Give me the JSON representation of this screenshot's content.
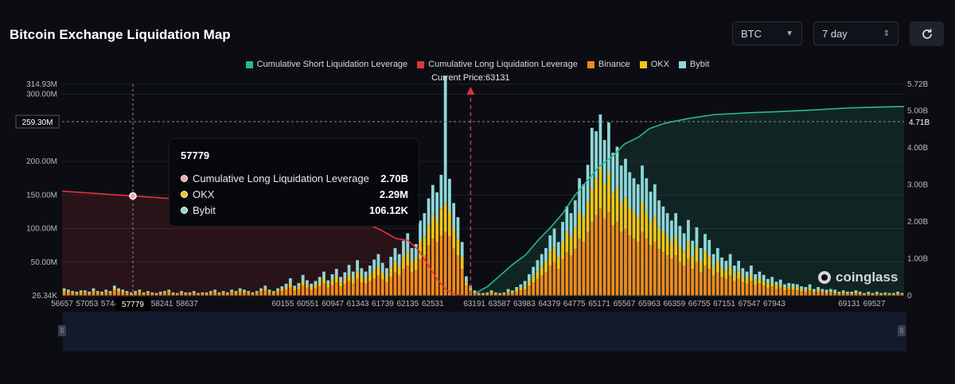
{
  "header": {
    "title": "Bitcoin Exchange Liquidation Map"
  },
  "controls": {
    "symbol": "BTC",
    "range": "7 day"
  },
  "brand": {
    "name": "coinglass"
  },
  "tooltip": {
    "title": "57779",
    "rows": [
      {
        "label": "Cumulative Long Liquidation Leverage",
        "value": "2.70B",
        "color": "#f4a3a8"
      },
      {
        "label": "OKX",
        "value": "2.29M",
        "color": "#f0c419"
      },
      {
        "label": "Bybit",
        "value": "106.12K",
        "color": "#8fd6d8"
      }
    ]
  },
  "chart_data": {
    "type": "bar",
    "current_price_label": "Current Price:63131",
    "current_price": 63131,
    "legend": [
      {
        "name": "Cumulative Short Liquidation Leverage",
        "color": "#2bb88a"
      },
      {
        "name": "Cumulative Long Liquidation Leverage",
        "color": "#e0343e"
      },
      {
        "name": "Binance",
        "color": "#f08a1c"
      },
      {
        "name": "OKX",
        "color": "#f0c419"
      },
      {
        "name": "Bybit",
        "color": "#8fd6d8"
      }
    ],
    "x_range": [
      56657,
      70000
    ],
    "x_ticks": [
      "56657",
      "57053",
      "57449",
      "57779",
      "58241",
      "58637",
      "60155",
      "60551",
      "60947",
      "61343",
      "61739",
      "62135",
      "62531",
      "63191",
      "63587",
      "63983",
      "64379",
      "64775",
      "65171",
      "65567",
      "65963",
      "66359",
      "66755",
      "67151",
      "67547",
      "67943",
      "69131",
      "69527"
    ],
    "x_tick_values": [
      56657,
      57053,
      57449,
      57779,
      58241,
      58637,
      60155,
      60551,
      60947,
      61343,
      61739,
      62135,
      62531,
      63191,
      63587,
      63983,
      64379,
      64775,
      65171,
      65567,
      65963,
      66359,
      66755,
      67151,
      67547,
      67943,
      69131,
      69527
    ],
    "hover_x": 57779,
    "hover_x_label": "57779",
    "y_left_ticks": [
      {
        "label": "314.93M",
        "value": 314.93
      },
      {
        "label": "300.00M",
        "value": 300
      },
      {
        "label": "200.00M",
        "value": 200
      },
      {
        "label": "150.00M",
        "value": 150
      },
      {
        "label": "100.00M",
        "value": 100
      },
      {
        "label": "50.00M",
        "value": 50
      },
      {
        "label": "26.34K",
        "value": 0
      }
    ],
    "y_left_crosshair": {
      "label": "259.30M",
      "value": 259.3
    },
    "y_left_range": [
      0,
      314.93
    ],
    "y_right_ticks": [
      {
        "label": "5.72B",
        "value": 5.72
      },
      {
        "label": "5.00B",
        "value": 5
      },
      {
        "label": "4.00B",
        "value": 4
      },
      {
        "label": "3.00B",
        "value": 3
      },
      {
        "label": "2.00B",
        "value": 2
      },
      {
        "label": "1.00B",
        "value": 1
      },
      {
        "label": "0",
        "value": 0
      }
    ],
    "y_right_crosshair": {
      "label": "4.71B",
      "value": 4.71
    },
    "y_right_range": [
      0,
      5.72
    ],
    "long_cumulative": {
      "x": [
        56657,
        57000,
        57500,
        57779,
        58200,
        58800,
        59400,
        60000,
        60600,
        61200,
        61500,
        61739,
        61950,
        62135,
        62300,
        62450,
        62600,
        62750,
        62900,
        63050
      ],
      "y": [
        2.83,
        2.79,
        2.73,
        2.7,
        2.65,
        2.58,
        2.5,
        2.42,
        2.3,
        2.1,
        1.95,
        1.75,
        1.55,
        1.5,
        1.25,
        0.85,
        0.45,
        0.15,
        0.03,
        0
      ]
    },
    "short_cumulative": {
      "x": [
        63191,
        63400,
        63600,
        63800,
        64000,
        64200,
        64400,
        64600,
        64775,
        64950,
        65171,
        65400,
        65567,
        65800,
        65963,
        66200,
        66359,
        66600,
        67000,
        67547,
        68000,
        68500,
        69131,
        69527,
        70000
      ],
      "y": [
        0.05,
        0.25,
        0.55,
        0.85,
        1.1,
        1.5,
        1.85,
        2.25,
        2.7,
        3.05,
        3.5,
        3.8,
        4.1,
        4.3,
        4.52,
        4.66,
        4.72,
        4.8,
        4.9,
        4.95,
        4.98,
        5.02,
        5.08,
        5.1,
        5.12
      ]
    },
    "bars_binance": [
      6,
      5,
      4,
      3,
      4,
      5,
      3,
      6,
      4,
      3,
      5,
      4,
      8,
      6,
      5,
      4,
      3,
      4,
      5,
      3,
      4,
      3,
      2,
      3,
      4,
      5,
      3,
      2,
      4,
      3,
      3,
      4,
      2,
      3,
      3,
      4,
      5,
      3,
      4,
      3,
      5,
      4,
      6,
      5,
      4,
      3,
      4,
      6,
      8,
      5,
      4,
      6,
      7,
      9,
      12,
      8,
      10,
      15,
      12,
      9,
      11,
      14,
      18,
      12,
      16,
      20,
      14,
      17,
      22,
      18,
      25,
      20,
      18,
      22,
      26,
      30,
      24,
      20,
      28,
      35,
      30,
      40,
      45,
      35,
      38,
      55,
      60,
      75,
      85,
      80,
      90,
      95,
      88,
      70,
      60,
      40,
      15,
      8,
      4,
      2,
      2,
      3,
      4,
      3,
      2,
      3,
      5,
      4,
      6,
      8,
      10,
      15,
      20,
      25,
      30,
      35,
      45,
      50,
      40,
      55,
      65,
      60,
      70,
      85,
      80,
      95,
      110,
      120,
      130,
      115,
      125,
      105,
      110,
      95,
      100,
      90,
      85,
      80,
      95,
      85,
      75,
      80,
      70,
      65,
      60,
      55,
      60,
      50,
      45,
      55,
      40,
      50,
      35,
      45,
      40,
      30,
      35,
      28,
      25,
      30,
      22,
      25,
      20,
      18,
      22,
      16,
      18,
      15,
      12,
      14,
      10,
      12,
      8,
      10,
      9,
      8,
      7,
      6,
      8,
      5,
      6,
      5,
      4,
      5,
      4,
      3,
      4,
      3,
      3,
      4,
      3,
      2,
      3,
      2,
      3,
      2,
      3,
      2,
      2,
      3,
      2
    ],
    "bars_okx": [
      2,
      2,
      1,
      1,
      2,
      1,
      1,
      2,
      1,
      1,
      2,
      1,
      3,
      2,
      2,
      1,
      1,
      1,
      2,
      1,
      1,
      1,
      1,
      1,
      1,
      2,
      1,
      1,
      1,
      1,
      1,
      1,
      1,
      1,
      1,
      1,
      2,
      1,
      1,
      1,
      2,
      1,
      2,
      2,
      1,
      1,
      1,
      2,
      3,
      2,
      1,
      2,
      3,
      4,
      6,
      3,
      4,
      7,
      5,
      4,
      5,
      6,
      8,
      5,
      7,
      9,
      6,
      8,
      10,
      8,
      12,
      9,
      8,
      10,
      12,
      14,
      11,
      9,
      13,
      16,
      14,
      18,
      20,
      16,
      17,
      25,
      28,
      30,
      35,
      32,
      40,
      42,
      38,
      30,
      25,
      18,
      6,
      3,
      2,
      1,
      1,
      1,
      2,
      1,
      1,
      1,
      2,
      2,
      3,
      4,
      5,
      7,
      10,
      12,
      14,
      16,
      20,
      22,
      18,
      25,
      30,
      28,
      32,
      40,
      38,
      45,
      50,
      55,
      60,
      52,
      58,
      48,
      50,
      44,
      46,
      42,
      40,
      38,
      44,
      40,
      35,
      38,
      32,
      30,
      28,
      25,
      28,
      24,
      21,
      26,
      18,
      23,
      16,
      21,
      19,
      14,
      16,
      13,
      12,
      14,
      10,
      12,
      9,
      8,
      10,
      7,
      8,
      7,
      6,
      6,
      5,
      5,
      4,
      4,
      4,
      4,
      3,
      3,
      4,
      2,
      3,
      2,
      2,
      2,
      2,
      1,
      2,
      1,
      1,
      2,
      1,
      1,
      1,
      1,
      1,
      1,
      1,
      1,
      1,
      1,
      1
    ],
    "bars_bybit": [
      3,
      2,
      2,
      2,
      2,
      2,
      2,
      3,
      2,
      2,
      2,
      2,
      4,
      3,
      2,
      2,
      1,
      2,
      2,
      1,
      2,
      1,
      1,
      2,
      2,
      2,
      1,
      1,
      2,
      1,
      1,
      2,
      1,
      1,
      1,
      2,
      2,
      1,
      2,
      1,
      2,
      2,
      3,
      2,
      2,
      1,
      2,
      3,
      4,
      2,
      2,
      3,
      4,
      5,
      8,
      4,
      5,
      9,
      6,
      5,
      6,
      8,
      10,
      6,
      9,
      11,
      8,
      10,
      14,
      10,
      16,
      12,
      10,
      13,
      16,
      18,
      14,
      12,
      17,
      20,
      18,
      24,
      28,
      20,
      22,
      32,
      35,
      40,
      45,
      42,
      50,
      190,
      48,
      38,
      32,
      22,
      8,
      4,
      2,
      1,
      1,
      1,
      2,
      1,
      1,
      1,
      3,
      2,
      4,
      5,
      7,
      10,
      13,
      16,
      18,
      20,
      25,
      28,
      22,
      30,
      38,
      35,
      40,
      50,
      48,
      55,
      90,
      70,
      80,
      65,
      75,
      60,
      62,
      55,
      58,
      52,
      50,
      48,
      55,
      50,
      45,
      48,
      40,
      38,
      35,
      32,
      35,
      30,
      27,
      32,
      24,
      29,
      20,
      26,
      24,
      18,
      20,
      16,
      15,
      18,
      13,
      15,
      12,
      10,
      13,
      9,
      10,
      9,
      7,
      8,
      6,
      7,
      5,
      5,
      5,
      5,
      4,
      4,
      5,
      3,
      4,
      3,
      3,
      3,
      3,
      2,
      2,
      2,
      2,
      2,
      2,
      1,
      2,
      1,
      2,
      1,
      1,
      1,
      1,
      2,
      1
    ]
  }
}
